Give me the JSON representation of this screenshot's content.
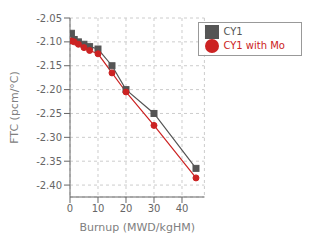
{
  "chart_data": {
    "type": "line",
    "xlabel": "Burnup (MWD/kgHM)",
    "ylabel": "FTC (pcm/°C)",
    "series": [
      {
        "name": "CY1",
        "color": "#555555",
        "marker": "square",
        "x": [
          0.5,
          1.5,
          3,
          5,
          7,
          10,
          15,
          20,
          30,
          45
        ],
        "values": [
          -2.082,
          -2.095,
          -2.1,
          -2.105,
          -2.11,
          -2.115,
          -2.15,
          -2.2,
          -2.25,
          -2.365
        ]
      },
      {
        "name": "CY1 with Mo",
        "color": "#cc2222",
        "marker": "circle",
        "x": [
          0.5,
          1.5,
          3,
          5,
          7,
          10,
          15,
          20,
          30,
          45
        ],
        "values": [
          -2.098,
          -2.1,
          -2.105,
          -2.112,
          -2.118,
          -2.125,
          -2.165,
          -2.205,
          -2.275,
          -2.385
        ]
      }
    ],
    "xlim": [
      0,
      48
    ],
    "ylim": [
      -2.425,
      -2.05
    ],
    "xticks": [
      0,
      10,
      20,
      30,
      40
    ],
    "yticks": [
      {
        "value": -2.4,
        "label": "-2.40"
      },
      -2.35,
      {
        "value": -2.3,
        "label": "-2.30"
      },
      -2.25,
      {
        "value": -2.2,
        "label": "-2.20"
      },
      -2.15,
      {
        "value": -2.1,
        "label": "-2.10"
      },
      -2.05
    ],
    "grid": true,
    "legend": "upper right"
  }
}
